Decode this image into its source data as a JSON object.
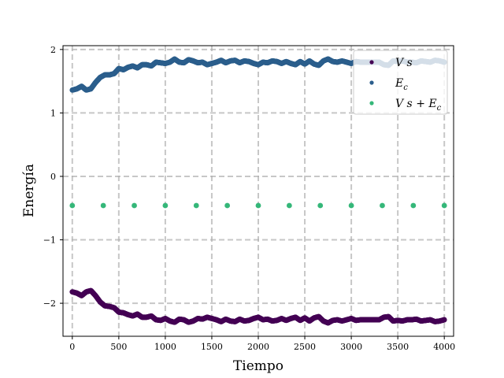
{
  "chart_data": {
    "type": "scatter",
    "xlabel": "Tiempo",
    "ylabel": "Energía",
    "xlim": [
      -100,
      4100
    ],
    "ylim": [
      -2.52,
      2.06
    ],
    "xticks": [
      0,
      500,
      1000,
      1500,
      2000,
      2500,
      3000,
      3500,
      4000
    ],
    "xtick_labels": [
      "0",
      "500",
      "1000",
      "1500",
      "2000",
      "2500",
      "3000",
      "3500",
      "4000"
    ],
    "yticks": [
      2,
      1,
      0,
      -1,
      -2
    ],
    "ytick_labels": [
      "2",
      "1",
      "0",
      "−1",
      "−2"
    ],
    "grid": true,
    "grid_style": "dashed",
    "legend_position": "upper-right",
    "series": [
      {
        "name": "Vs",
        "legend_label": "V s",
        "color": "#440154",
        "x": [
          0,
          50,
          100,
          150,
          200,
          250,
          300,
          350,
          400,
          450,
          500,
          550,
          600,
          650,
          700,
          750,
          800,
          850,
          900,
          950,
          1000,
          1050,
          1100,
          1150,
          1200,
          1250,
          1300,
          1350,
          1400,
          1450,
          1500,
          1550,
          1600,
          1650,
          1700,
          1750,
          1800,
          1850,
          1900,
          1950,
          2000,
          2050,
          2100,
          2150,
          2200,
          2250,
          2300,
          2350,
          2400,
          2450,
          2500,
          2550,
          2600,
          2650,
          2700,
          2750,
          2800,
          2850,
          2900,
          2950,
          3000,
          3050,
          3100,
          3150,
          3200,
          3250,
          3300,
          3350,
          3400,
          3450,
          3500,
          3550,
          3600,
          3650,
          3700,
          3750,
          3800,
          3850,
          3900,
          3950,
          4000
        ],
        "y": [
          -1.82,
          -1.84,
          -1.88,
          -1.82,
          -1.8,
          -1.88,
          -1.98,
          -2.04,
          -2.05,
          -2.07,
          -2.14,
          -2.15,
          -2.18,
          -2.2,
          -2.17,
          -2.22,
          -2.22,
          -2.2,
          -2.26,
          -2.27,
          -2.24,
          -2.28,
          -2.3,
          -2.25,
          -2.26,
          -2.3,
          -2.28,
          -2.24,
          -2.25,
          -2.22,
          -2.24,
          -2.26,
          -2.29,
          -2.25,
          -2.28,
          -2.29,
          -2.25,
          -2.28,
          -2.27,
          -2.24,
          -2.22,
          -2.26,
          -2.25,
          -2.28,
          -2.27,
          -2.24,
          -2.27,
          -2.24,
          -2.22,
          -2.27,
          -2.23,
          -2.28,
          -2.23,
          -2.21,
          -2.28,
          -2.31,
          -2.27,
          -2.26,
          -2.28,
          -2.26,
          -2.24,
          -2.27,
          -2.26,
          -2.26,
          -2.26,
          -2.26,
          -2.26,
          -2.22,
          -2.21,
          -2.28,
          -2.27,
          -2.28,
          -2.26,
          -2.26,
          -2.25,
          -2.28,
          -2.27,
          -2.26,
          -2.29,
          -2.28,
          -2.26
        ]
      },
      {
        "name": "Ec",
        "legend_label": "E",
        "legend_subscript": "c",
        "color": "#2b5e8c",
        "x": [
          0,
          50,
          100,
          150,
          200,
          250,
          300,
          350,
          400,
          450,
          500,
          550,
          600,
          650,
          700,
          750,
          800,
          850,
          900,
          950,
          1000,
          1050,
          1100,
          1150,
          1200,
          1250,
          1300,
          1350,
          1400,
          1450,
          1500,
          1550,
          1600,
          1650,
          1700,
          1750,
          1800,
          1850,
          1900,
          1950,
          2000,
          2050,
          2100,
          2150,
          2200,
          2250,
          2300,
          2350,
          2400,
          2450,
          2500,
          2550,
          2600,
          2650,
          2700,
          2750,
          2800,
          2850,
          2900,
          2950,
          3000,
          3050,
          3100,
          3150,
          3200,
          3250,
          3300,
          3350,
          3400,
          3450,
          3500,
          3550,
          3600,
          3650,
          3700,
          3750,
          3800,
          3850,
          3900,
          3950,
          4000
        ],
        "y": [
          1.36,
          1.38,
          1.42,
          1.36,
          1.38,
          1.48,
          1.56,
          1.6,
          1.6,
          1.62,
          1.7,
          1.68,
          1.72,
          1.74,
          1.71,
          1.76,
          1.76,
          1.74,
          1.8,
          1.79,
          1.78,
          1.8,
          1.85,
          1.8,
          1.79,
          1.84,
          1.82,
          1.79,
          1.8,
          1.76,
          1.78,
          1.8,
          1.83,
          1.79,
          1.82,
          1.83,
          1.79,
          1.82,
          1.81,
          1.78,
          1.76,
          1.8,
          1.79,
          1.82,
          1.81,
          1.78,
          1.81,
          1.78,
          1.76,
          1.81,
          1.77,
          1.82,
          1.77,
          1.75,
          1.82,
          1.85,
          1.81,
          1.8,
          1.82,
          1.8,
          1.78,
          1.81,
          1.8,
          1.8,
          1.8,
          1.8,
          1.8,
          1.76,
          1.75,
          1.82,
          1.81,
          1.82,
          1.8,
          1.8,
          1.79,
          1.82,
          1.81,
          1.8,
          1.83,
          1.82,
          1.8
        ]
      },
      {
        "name": "Vs+Ec",
        "legend_label": "V s + E",
        "legend_subscript": "c",
        "color": "#35b779",
        "x": [
          0,
          4000
        ],
        "y": [
          -0.46,
          -0.46
        ]
      }
    ]
  }
}
